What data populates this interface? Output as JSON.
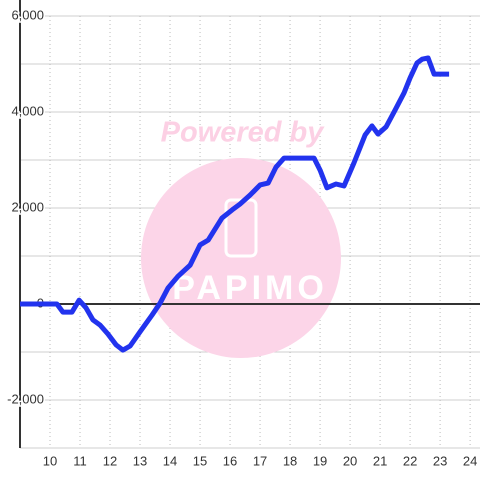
{
  "chart_data": {
    "type": "line",
    "watermark": {
      "top": "Powered by",
      "bottom": "PAPIMO"
    },
    "x": [
      9.0,
      10.23,
      10.43,
      10.73,
      10.97,
      11.2,
      11.43,
      11.67,
      11.93,
      12.2,
      12.43,
      12.67,
      13.0,
      13.4,
      13.67,
      13.93,
      14.27,
      14.67,
      15.0,
      15.27,
      15.73,
      16.07,
      16.33,
      16.67,
      17.0,
      17.27,
      17.53,
      17.8,
      18.8,
      19.0,
      19.23,
      19.53,
      19.8,
      20.13,
      20.5,
      20.73,
      20.93,
      21.2,
      21.5,
      21.8,
      22.0,
      22.23,
      22.4,
      22.6,
      22.8,
      23.3
    ],
    "series": [
      {
        "color": "#2233ee",
        "values": [
          0,
          0,
          -170,
          -170,
          80,
          -80,
          -330,
          -440,
          -625,
          -850,
          -960,
          -875,
          -580,
          -230,
          20,
          330,
          580,
          810,
          1230,
          1330,
          1790,
          1960,
          2080,
          2270,
          2480,
          2520,
          2850,
          3040,
          3040,
          2790,
          2420,
          2500,
          2460,
          2940,
          3520,
          3710,
          3540,
          3690,
          4040,
          4400,
          4710,
          5020,
          5100,
          5125,
          4790,
          4790
        ]
      }
    ],
    "xlim": [
      9,
      24.33
    ],
    "xticks": [
      10,
      11,
      12,
      13,
      14,
      15,
      16,
      17,
      18,
      19,
      20,
      21,
      22,
      23,
      24
    ],
    "ylim": [
      -3000,
      6000
    ],
    "yticks": [
      {
        "value": -2000,
        "label": "-2,000"
      },
      0,
      {
        "value": 2000,
        "label": "2,000"
      },
      {
        "value": 4000,
        "label": "4,000"
      },
      {
        "value": 6000,
        "label": "6,000"
      }
    ],
    "yminor": [
      -3000,
      -1000,
      1000,
      3000,
      5000
    ],
    "grid": true
  }
}
